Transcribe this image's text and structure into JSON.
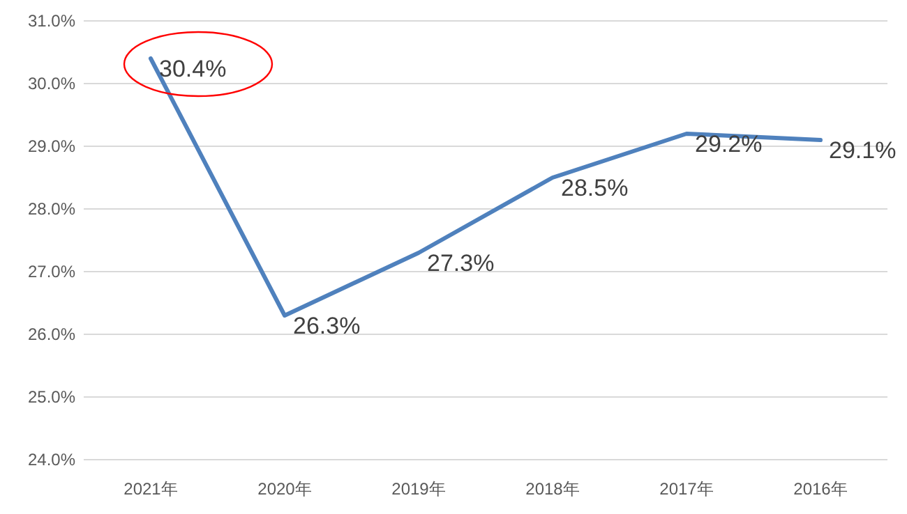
{
  "chart_data": {
    "type": "line",
    "categories": [
      "2021年",
      "2020年",
      "2019年",
      "2018年",
      "2017年",
      "2016年"
    ],
    "series": [
      {
        "color": "#4f81bd",
        "values": [
          30.4,
          26.3,
          27.3,
          28.5,
          29.2,
          29.1
        ],
        "value_labels": [
          "30.4%",
          "26.3%",
          "27.3%",
          "28.5%",
          "29.2%",
          "29.1%"
        ]
      }
    ],
    "ylim": [
      24,
      31
    ],
    "yticks": [
      {
        "value": 24,
        "label": "24.0%"
      },
      {
        "value": 25,
        "label": "25.0%"
      },
      {
        "value": 26,
        "label": "26.0%"
      },
      {
        "value": 27,
        "label": "27.0%"
      },
      {
        "value": 28,
        "label": "28.0%"
      },
      {
        "value": 29,
        "label": "29.0%"
      },
      {
        "value": 30,
        "label": "30.0%"
      },
      {
        "value": 31,
        "label": "31.0%"
      }
    ],
    "grid": "y",
    "marker": "none",
    "line_style": "solid"
  }
}
